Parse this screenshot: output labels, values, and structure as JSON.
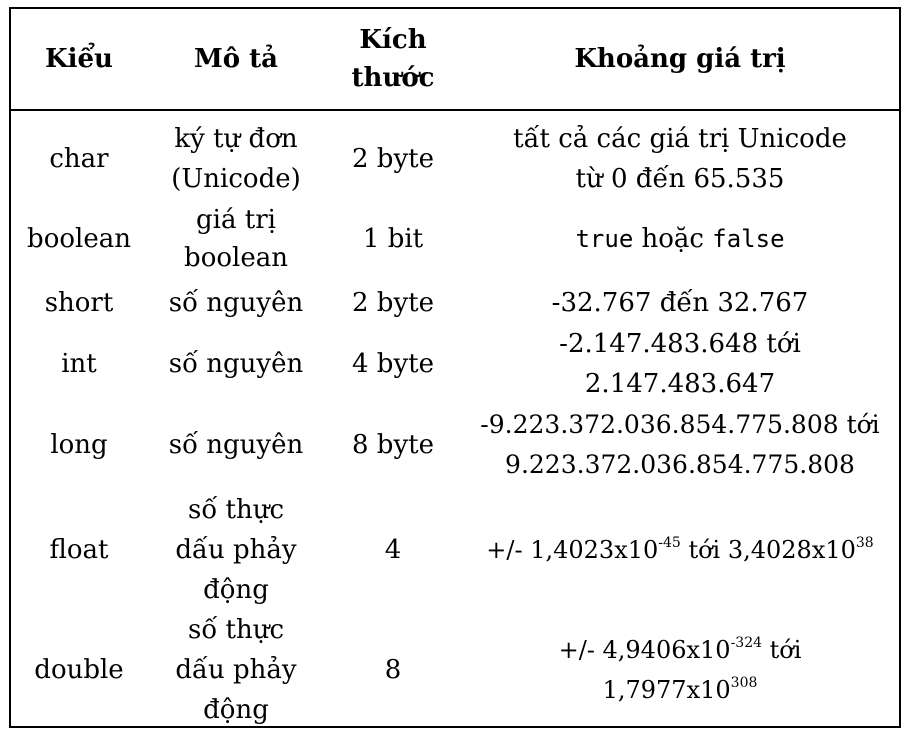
{
  "table": {
    "headers": {
      "type": "Kiểu",
      "desc": "Mô tả",
      "size_line1": "Kích",
      "size_line2": "thước",
      "range": "Khoảng giá trị"
    },
    "rows": [
      {
        "type": "char",
        "desc_line1": "ký tự đơn",
        "desc_line2": "(Unicode)",
        "size": "2 byte",
        "range_line1": "tất cả các giá trị Unicode",
        "range_line2": "từ 0 đến 65.535"
      },
      {
        "type": "boolean",
        "desc_line1": "giá trị",
        "desc_line2": "boolean",
        "size": "1 bit",
        "range_code1": "true",
        "range_word": "hoặc",
        "range_code2": "false"
      },
      {
        "type": "short",
        "desc": "số nguyên",
        "size": "2 byte",
        "range": "-32.767 đến 32.767"
      },
      {
        "type": "int",
        "desc": "số nguyên",
        "size": "4 byte",
        "range_line1": "-2.147.483.648 tới",
        "range_line2": "2.147.483.647"
      },
      {
        "type": "long",
        "desc": "số nguyên",
        "size": "8 byte",
        "range_line1": "-9.223.372.036.854.775.808 tới",
        "range_line2": "9.223.372.036.854.775.808"
      },
      {
        "type": "float",
        "desc_line1": "số thực",
        "desc_line2": "dấu phảy",
        "desc_line3": "động",
        "size": "4",
        "range_prefix": "+/- 1,4023x10",
        "range_exp1": "-45",
        "range_mid": " tới 3,4028x10",
        "range_exp2": "38"
      },
      {
        "type": "double",
        "desc_line1": "số thực",
        "desc_line2": "dấu phảy",
        "desc_line3": "động",
        "size": "8",
        "range_prefix": "+/- 4,9406x10",
        "range_exp1": "-324",
        "range_mid": " tới",
        "range_line2_base": "1,7977x10",
        "range_exp2": "308"
      }
    ]
  }
}
